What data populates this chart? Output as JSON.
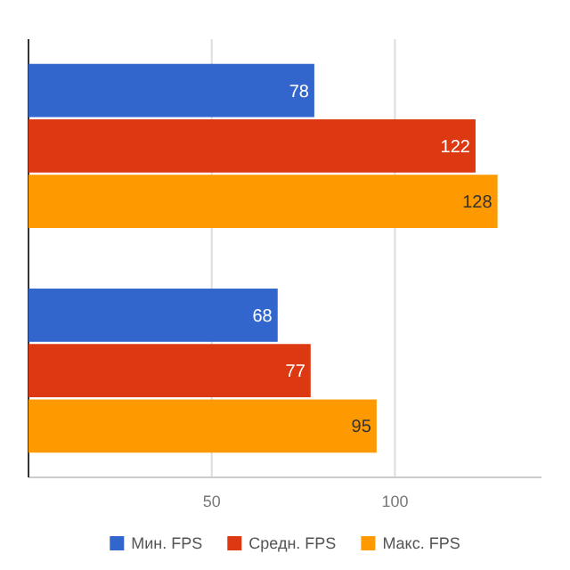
{
  "chart_data": {
    "type": "bar",
    "orientation": "horizontal",
    "categories": [
      null,
      null
    ],
    "series": [
      {
        "name": "Мин. FPS",
        "color": "#3366cc",
        "values": [
          78,
          68
        ]
      },
      {
        "name": "Средн. FPS",
        "color": "#dc3912",
        "values": [
          122,
          77
        ]
      },
      {
        "name": "Макс. FPS",
        "color": "#ff9900",
        "values": [
          128,
          95
        ]
      }
    ],
    "xlim": [
      0,
      140
    ],
    "xticks": [
      50,
      100
    ],
    "grid": "x",
    "legend": "bottom",
    "data_labels": true
  }
}
